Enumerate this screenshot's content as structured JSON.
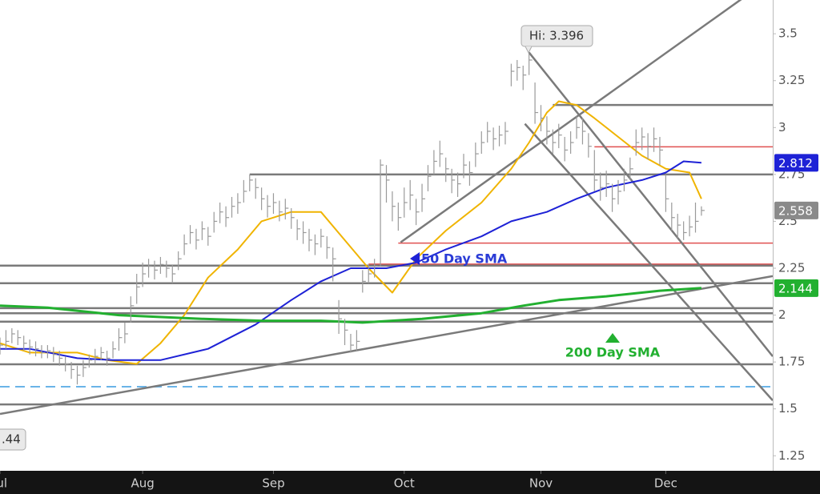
{
  "chart_data": {
    "type": "ohlc",
    "xlim": [
      0,
      130
    ],
    "ylim": [
      1.17,
      3.68
    ],
    "yticks": [
      1.25,
      1.5,
      1.75,
      2,
      2.25,
      2.5,
      2.75,
      3,
      3.25,
      3.5
    ],
    "xticks": [
      {
        "value": 0,
        "label": "Jul"
      },
      {
        "value": 24,
        "label": "Aug"
      },
      {
        "value": 46,
        "label": "Sep"
      },
      {
        "value": 68,
        "label": "Oct"
      },
      {
        "value": 91,
        "label": "Nov"
      },
      {
        "value": 112,
        "label": "Dec"
      }
    ],
    "bar_color": "#9a9a9a",
    "close": [
      1.84,
      1.86,
      1.9,
      1.88,
      1.85,
      1.83,
      1.82,
      1.8,
      1.81,
      1.79,
      1.77,
      1.74,
      1.71,
      1.68,
      1.72,
      1.76,
      1.78,
      1.8,
      1.77,
      1.82,
      1.88,
      1.9,
      2.05,
      2.15,
      2.22,
      2.26,
      2.24,
      2.27,
      2.25,
      2.22,
      2.3,
      2.38,
      2.44,
      2.4,
      2.46,
      2.42,
      2.5,
      2.55,
      2.52,
      2.58,
      2.6,
      2.66,
      2.72,
      2.68,
      2.62,
      2.58,
      2.6,
      2.55,
      2.57,
      2.52,
      2.46,
      2.44,
      2.4,
      2.38,
      2.42,
      2.36,
      2.3,
      1.98,
      1.92,
      1.84,
      1.86,
      2.18,
      2.22,
      2.26,
      2.8,
      2.72,
      2.58,
      2.52,
      2.6,
      2.64,
      2.55,
      2.62,
      2.74,
      2.82,
      2.86,
      2.78,
      2.72,
      2.7,
      2.8,
      2.76,
      2.86,
      2.92,
      2.98,
      2.94,
      2.96,
      2.98,
      3.3,
      3.32,
      3.28,
      3.36,
      3.08,
      3.05,
      2.98,
      2.92,
      2.96,
      2.88,
      2.92,
      3.0,
      2.98,
      2.9,
      2.72,
      2.68,
      2.7,
      2.62,
      2.66,
      2.72,
      2.78,
      2.92,
      2.95,
      2.9,
      2.94,
      2.88,
      2.62,
      2.52,
      2.48,
      2.44,
      2.47,
      2.5,
      2.558
    ],
    "high": [
      1.88,
      1.92,
      1.93,
      1.92,
      1.89,
      1.87,
      1.86,
      1.84,
      1.84,
      1.83,
      1.81,
      1.78,
      1.75,
      1.73,
      1.76,
      1.79,
      1.82,
      1.83,
      1.81,
      1.86,
      1.93,
      1.96,
      2.1,
      2.22,
      2.28,
      2.3,
      2.29,
      2.31,
      2.29,
      2.27,
      2.34,
      2.43,
      2.48,
      2.46,
      2.5,
      2.47,
      2.55,
      2.6,
      2.58,
      2.63,
      2.65,
      2.72,
      2.75,
      2.73,
      2.68,
      2.64,
      2.65,
      2.61,
      2.62,
      2.57,
      2.51,
      2.5,
      2.46,
      2.43,
      2.46,
      2.42,
      2.36,
      2.08,
      1.98,
      1.9,
      1.92,
      2.24,
      2.27,
      2.3,
      2.83,
      2.8,
      2.66,
      2.6,
      2.68,
      2.72,
      2.62,
      2.7,
      2.8,
      2.88,
      2.93,
      2.84,
      2.78,
      2.76,
      2.86,
      2.82,
      2.92,
      2.98,
      3.03,
      3.0,
      3.01,
      3.03,
      3.34,
      3.36,
      3.33,
      3.396,
      3.24,
      3.12,
      3.06,
      2.99,
      3.02,
      2.95,
      2.98,
      3.06,
      3.05,
      2.97,
      2.88,
      2.76,
      2.77,
      2.7,
      2.72,
      2.78,
      2.84,
      2.99,
      3.0,
      2.97,
      3.0,
      2.95,
      2.75,
      2.6,
      2.54,
      2.5,
      2.53,
      2.6,
      2.58
    ],
    "low": [
      1.79,
      1.82,
      1.85,
      1.84,
      1.81,
      1.79,
      1.78,
      1.77,
      1.77,
      1.75,
      1.73,
      1.7,
      1.66,
      1.63,
      1.67,
      1.72,
      1.74,
      1.76,
      1.73,
      1.77,
      1.81,
      1.85,
      1.96,
      2.06,
      2.15,
      2.2,
      2.19,
      2.22,
      2.2,
      2.17,
      2.24,
      2.32,
      2.38,
      2.35,
      2.4,
      2.37,
      2.44,
      2.49,
      2.47,
      2.52,
      2.54,
      2.6,
      2.66,
      2.62,
      2.56,
      2.52,
      2.54,
      2.5,
      2.51,
      2.46,
      2.4,
      2.38,
      2.34,
      2.32,
      2.36,
      2.3,
      2.18,
      1.9,
      1.84,
      1.8,
      1.81,
      2.12,
      2.17,
      2.2,
      2.26,
      2.6,
      2.5,
      2.45,
      2.52,
      2.56,
      2.48,
      2.55,
      2.66,
      2.75,
      2.79,
      2.71,
      2.65,
      2.63,
      2.73,
      2.69,
      2.79,
      2.86,
      2.92,
      2.88,
      2.9,
      2.91,
      3.22,
      3.25,
      3.2,
      3.28,
      3.02,
      2.98,
      2.91,
      2.86,
      2.89,
      2.82,
      2.86,
      2.94,
      2.91,
      2.84,
      2.66,
      2.61,
      2.63,
      2.55,
      2.59,
      2.66,
      2.72,
      2.85,
      2.88,
      2.83,
      2.87,
      2.8,
      2.55,
      2.45,
      2.41,
      2.4,
      2.42,
      2.44,
      2.53
    ],
    "series": [
      {
        "color": "#f0b400",
        "width": 2,
        "x": [
          0,
          5,
          13,
          18,
          23,
          27,
          31,
          35,
          40,
          44,
          49,
          54,
          58,
          62,
          66,
          70,
          75,
          81,
          86,
          89,
          92,
          94,
          97,
          100,
          104,
          108,
          112,
          116,
          118
        ],
        "values": [
          1.85,
          1.8,
          1.8,
          1.76,
          1.74,
          1.85,
          2.0,
          2.2,
          2.35,
          2.5,
          2.55,
          2.55,
          2.4,
          2.25,
          2.12,
          2.3,
          2.45,
          2.6,
          2.78,
          2.92,
          3.08,
          3.14,
          3.12,
          3.05,
          2.95,
          2.85,
          2.78,
          2.76,
          2.62
        ]
      },
      {
        "color": "#1e22d6",
        "width": 2,
        "x": [
          0,
          5,
          13,
          19,
          27,
          35,
          43,
          49,
          54,
          59,
          65,
          70,
          75,
          81,
          86,
          92,
          97,
          102,
          108,
          112,
          115,
          118
        ],
        "values": [
          1.82,
          1.82,
          1.77,
          1.76,
          1.76,
          1.82,
          1.95,
          2.08,
          2.18,
          2.25,
          2.25,
          2.28,
          2.35,
          2.42,
          2.5,
          2.55,
          2.62,
          2.68,
          2.72,
          2.76,
          2.82,
          2.812
        ]
      },
      {
        "color": "#22b030",
        "width": 3,
        "x": [
          0,
          8,
          20,
          34,
          44,
          54,
          61,
          71,
          81,
          88,
          94,
          102,
          111,
          118
        ],
        "values": [
          2.05,
          2.04,
          2.0,
          1.98,
          1.97,
          1.97,
          1.96,
          1.98,
          2.01,
          2.05,
          2.08,
          2.1,
          2.13,
          2.144
        ]
      }
    ],
    "levels": [
      {
        "y": 3.12,
        "x0": 93,
        "color": "#7a7a7a"
      },
      {
        "y": 2.897,
        "x0": 100,
        "color": "#e05050"
      },
      {
        "y": 2.75,
        "x0": 42,
        "color": "#7a7a7a"
      },
      {
        "y": 2.384,
        "x0": 67,
        "color": "#e05050"
      },
      {
        "y": 2.272,
        "x0": 62,
        "color": "#e05050"
      },
      {
        "y": 2.264,
        "x0": 0,
        "color": "#7a7a7a"
      },
      {
        "y": 2.17,
        "x0": 0,
        "color": "#7a7a7a"
      },
      {
        "y": 2.037,
        "x0": 0,
        "color": "#7a7a7a"
      },
      {
        "y": 2.01,
        "x0": 0,
        "color": "#7a7a7a"
      },
      {
        "y": 1.965,
        "x0": 0,
        "color": "#7a7a7a"
      },
      {
        "y": 1.738,
        "x0": 0,
        "color": "#7a7a7a"
      },
      {
        "y": 1.618,
        "x0": 0,
        "color": "#6ab4e8",
        "dashed": true
      },
      {
        "y": 1.524,
        "x0": 0,
        "color": "#7a7a7a"
      }
    ],
    "trendlines": [
      {
        "x": [
          67.4,
          124.7
        ],
        "y": [
          2.388,
          3.684
        ]
      },
      {
        "x": [
          0,
          130
        ],
        "y": [
          1.473,
          2.208
        ]
      },
      {
        "x": [
          89,
          130
        ],
        "y": [
          3.4,
          1.78
        ]
      },
      {
        "x": [
          88.3,
          130
        ],
        "y": [
          3.02,
          1.545
        ]
      }
    ],
    "badges": [
      {
        "value": 2.812,
        "color": "#1e22d6",
        "text_color": "#ffffff"
      },
      {
        "value": 2.558,
        "color": "#8a8a8a",
        "text_color": "#ffffff"
      },
      {
        "value": 2.144,
        "color": "#22b030",
        "text_color": "#ffffff"
      }
    ],
    "annotations": {
      "high": "Hi: 3.396",
      "sma50": "50 Day SMA",
      "sma200": "200 Day SMA",
      "left": ".44"
    }
  }
}
